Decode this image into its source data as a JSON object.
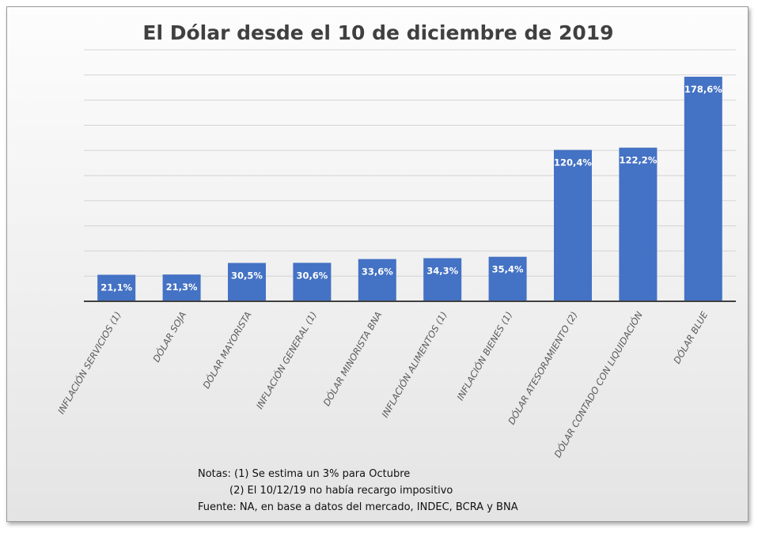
{
  "chart_data": {
    "type": "bar",
    "title": "El Dólar desde el 10 de diciembre de 2019",
    "categories": [
      "INFLACIÓN SERVICIOS (1)",
      "DÓLAR SOJA",
      "DÓLAR MAYORISTA",
      "INFLACIÓN GENERAL (1)",
      "DÓLAR MINORISTA BNA",
      "INFLACIÓN ALIMENTOS (1)",
      "INFLACIÓN BIENES (1)",
      "DÓLAR ATESORAMIENTO (2)",
      "DÓLAR CONTADO CON LIQUIDACIÓN",
      "DÓLAR BLUE"
    ],
    "values": [
      21.1,
      21.3,
      30.5,
      30.6,
      33.6,
      34.3,
      35.4,
      120.4,
      122.2,
      178.6
    ],
    "data_labels": [
      "21,1%",
      "21,3%",
      "30,5%",
      "30,6%",
      "33,6%",
      "34,3%",
      "35,4%",
      "120,4%",
      "122,2%",
      "178,6%"
    ],
    "ylim": [
      0,
      200
    ],
    "grid_step": 20,
    "grid": true,
    "y_axis_labels_shown": false,
    "bar_color": "#4472c4",
    "notes": [
      "Notas: (1) Se estima un 3% para Octubre",
      "(2) El 10/12/19 no había recargo impositivo",
      "Fuente: NA, en base a datos del mercado, INDEC, BCRA y BNA"
    ]
  }
}
